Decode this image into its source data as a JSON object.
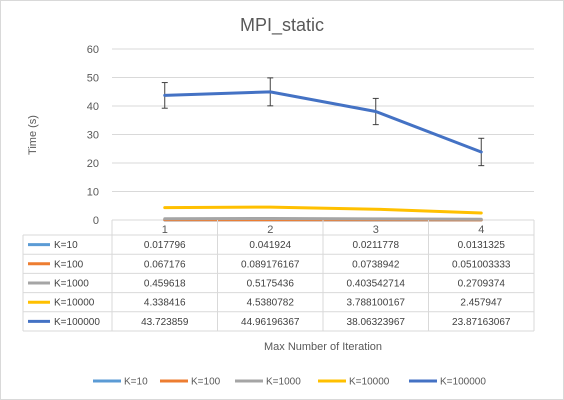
{
  "chart_data": {
    "type": "line",
    "title": "MPI_static",
    "xlabel": "Max Number of Iteration",
    "ylabel": "Time (s)",
    "ylim": [
      0,
      60
    ],
    "yticks": [
      "0",
      "10",
      "20",
      "30",
      "40",
      "50",
      "60"
    ],
    "grid": true,
    "legend_position": "bottom",
    "categories": [
      "1",
      "2",
      "3",
      "4"
    ],
    "series": [
      {
        "name": "K=10",
        "color": "#5B9BD5",
        "values": [
          0.017796,
          0.041924,
          0.0211778,
          0.0131325
        ],
        "labels": [
          "0.017796",
          "0.041924",
          "0.0211778",
          "0.0131325"
        ]
      },
      {
        "name": "K=100",
        "color": "#ED7D31",
        "values": [
          0.067176,
          0.089176167,
          0.0738942,
          0.051003333
        ],
        "labels": [
          "0.067176",
          "0.089176167",
          "0.0738942",
          "0.051003333"
        ]
      },
      {
        "name": "K=1000",
        "color": "#A5A5A5",
        "values": [
          0.459618,
          0.5175436,
          0.403542714,
          0.2709374
        ],
        "labels": [
          "0.459618",
          "0.5175436",
          "0.403542714",
          "0.2709374"
        ]
      },
      {
        "name": "K=10000",
        "color": "#FFC000",
        "values": [
          4.338416,
          4.5380782,
          3.788100167,
          2.457947
        ],
        "labels": [
          "4.338416",
          "4.5380782",
          "3.788100167",
          "2.457947"
        ]
      },
      {
        "name": "K=100000",
        "color": "#4472C4",
        "values": [
          43.723859,
          44.96196367,
          38.06323967,
          23.87163067
        ],
        "labels": [
          "43.723859",
          "44.96196367",
          "38.06323967",
          "23.87163067"
        ],
        "error": [
          4.5,
          4.9,
          4.6,
          4.8
        ]
      }
    ]
  }
}
